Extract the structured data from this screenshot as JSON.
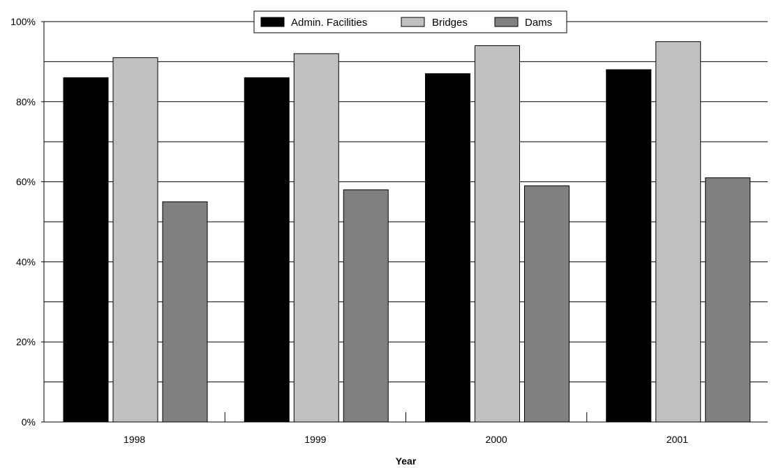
{
  "chart_data": {
    "type": "bar",
    "title": "",
    "xlabel": "Year",
    "ylabel": "",
    "categories": [
      "1998",
      "1999",
      "2000",
      "2001"
    ],
    "series": [
      {
        "name": "Admin. Facilities",
        "color": "#000000",
        "values": [
          86,
          86,
          87,
          88
        ]
      },
      {
        "name": "Bridges",
        "color": "#c0c0c0",
        "values": [
          91,
          92,
          94,
          95
        ]
      },
      {
        "name": "Dams",
        "color": "#808080",
        "values": [
          55,
          58,
          59,
          61
        ]
      }
    ],
    "ylim": [
      0,
      100
    ],
    "yticks": [
      0,
      20,
      40,
      60,
      80,
      100
    ],
    "ytick_labels": [
      "0%",
      "20%",
      "40%",
      "60%",
      "80%",
      "100%"
    ],
    "minor_gridlines": [
      10,
      30,
      50,
      70,
      90
    ],
    "grid": true,
    "legend_position": "top-center"
  }
}
